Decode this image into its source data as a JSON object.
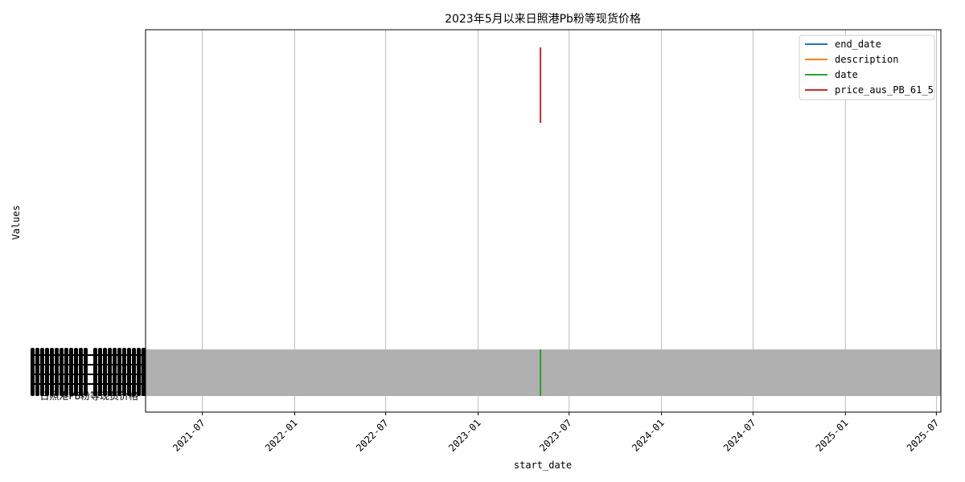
{
  "chart_data": {
    "type": "line",
    "title": "2023年5月以来日照港Pb粉等现货价格",
    "xlabel": "start_date",
    "ylabel": "Values",
    "x_ticks": [
      "2021-07",
      "2022-01",
      "2022-07",
      "2023-01",
      "2023-07",
      "2024-01",
      "2024-07",
      "2025-01",
      "2025-07"
    ],
    "x_range": [
      "2021-03-10",
      "2025-07-10"
    ],
    "y_categorical_label": "日照港PB粉等现货价格",
    "x_event": "2023-05-05",
    "grid": true,
    "legend_position": "top-right",
    "series": [
      {
        "name": "end_date",
        "color": "#1f77b4"
      },
      {
        "name": "description",
        "color": "#ff7f0e"
      },
      {
        "name": "date",
        "color": "#2ca02c"
      },
      {
        "name": "price_aus_PB_61_5",
        "color": "#d62728"
      }
    ],
    "band_color": "#b0b0b0"
  }
}
